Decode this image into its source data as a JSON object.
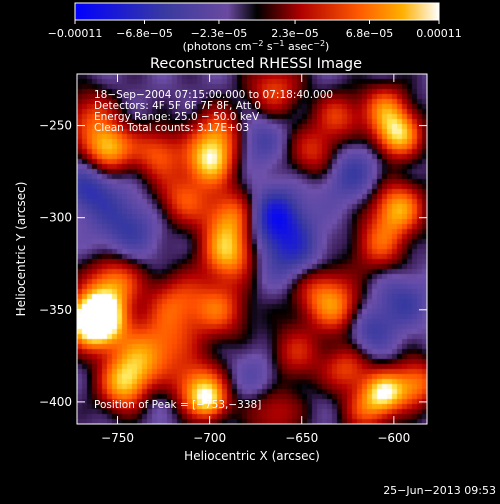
{
  "chart_data": {
    "type": "heatmap",
    "title": "Reconstructed RHESSI Image",
    "xlabel": "Heliocentric X (arcsec)",
    "ylabel": "Heliocentric Y (arcsec)",
    "xlim": [
      -772,
      -582
    ],
    "ylim": [
      -412,
      -222
    ],
    "x_ticks": [
      -750,
      -700,
      -650,
      -600
    ],
    "x_tick_labels": [
      "−750",
      "−700",
      "−650",
      "−600"
    ],
    "y_ticks": [
      -400,
      -350,
      -300,
      -250
    ],
    "y_tick_labels": [
      "−400",
      "−350",
      "−300",
      "−250"
    ],
    "colorbar": {
      "range": [
        -0.00011,
        0.00011
      ],
      "ticks": [
        -0.00011,
        -6.8e-05,
        -2.3e-05,
        2.3e-05,
        6.8e-05,
        0.00011
      ],
      "tick_labels": [
        "−0.00011",
        "−6.8e−05",
        "−2.3e−05",
        "2.3e−05",
        "6.8e−05",
        "0.00011"
      ],
      "units_text": "(photons cm",
      "units_exp1": "−2",
      "units_mid": " s",
      "units_exp2": "−1",
      "units_end": " asec",
      "units_exp3": "−2",
      "units_close": ")"
    },
    "annotations": [
      "18−Sep−2004 07:15:00.000 to 07:18:40.000",
      "Detectors: 4F 5F 6F 7F 8F, Att 0",
      "Energy Range: 25.0 − 50.0 keV",
      "Clean     Total counts: 3.17E+03"
    ],
    "peak_label": "Position of Peak = [−753,−338]",
    "peak_position": [
      -753,
      -338
    ],
    "blobs": [
      {
        "x": -763,
        "y": -355,
        "v": 1.0,
        "r": 9
      },
      {
        "x": -760,
        "y": -356,
        "v": 0.9,
        "r": 11
      },
      {
        "x": -752,
        "y": -335,
        "v": 0.7,
        "r": 10
      },
      {
        "x": -745,
        "y": -392,
        "v": 0.85,
        "r": 10
      },
      {
        "x": -740,
        "y": -380,
        "v": 0.55,
        "r": 11
      },
      {
        "x": -725,
        "y": -368,
        "v": 0.55,
        "r": 12
      },
      {
        "x": -718,
        "y": -345,
        "v": 0.5,
        "r": 11
      },
      {
        "x": -706,
        "y": -392,
        "v": 0.75,
        "r": 10
      },
      {
        "x": -700,
        "y": -400,
        "v": 0.65,
        "r": 7
      },
      {
        "x": -695,
        "y": -350,
        "v": 0.6,
        "r": 11
      },
      {
        "x": -690,
        "y": -320,
        "v": 0.8,
        "r": 10
      },
      {
        "x": -688,
        "y": -300,
        "v": 0.75,
        "r": 11
      },
      {
        "x": -700,
        "y": -270,
        "v": 0.85,
        "r": 9
      },
      {
        "x": -695,
        "y": -255,
        "v": 0.7,
        "r": 10
      },
      {
        "x": -715,
        "y": -290,
        "v": 0.55,
        "r": 10
      },
      {
        "x": -728,
        "y": -265,
        "v": 0.6,
        "r": 10
      },
      {
        "x": -755,
        "y": -262,
        "v": 0.9,
        "r": 9
      },
      {
        "x": -765,
        "y": -245,
        "v": 0.5,
        "r": 10
      },
      {
        "x": -665,
        "y": -230,
        "v": 0.55,
        "r": 10
      },
      {
        "x": -642,
        "y": -265,
        "v": 0.55,
        "r": 10
      },
      {
        "x": -630,
        "y": -245,
        "v": 0.5,
        "r": 9
      },
      {
        "x": -598,
        "y": -255,
        "v": 0.95,
        "r": 9
      },
      {
        "x": -605,
        "y": -240,
        "v": 0.6,
        "r": 9
      },
      {
        "x": -598,
        "y": -295,
        "v": 0.85,
        "r": 10
      },
      {
        "x": -608,
        "y": -315,
        "v": 0.55,
        "r": 10
      },
      {
        "x": -640,
        "y": -340,
        "v": 0.6,
        "r": 11
      },
      {
        "x": -628,
        "y": -352,
        "v": 0.55,
        "r": 10
      },
      {
        "x": -655,
        "y": -375,
        "v": 0.5,
        "r": 11
      },
      {
        "x": -625,
        "y": -382,
        "v": 0.55,
        "r": 9
      },
      {
        "x": -605,
        "y": -395,
        "v": 0.9,
        "r": 8
      },
      {
        "x": -588,
        "y": -390,
        "v": 0.7,
        "r": 9
      },
      {
        "x": -615,
        "y": -405,
        "v": 0.5,
        "r": 9
      },
      {
        "x": -665,
        "y": -405,
        "v": 0.45,
        "r": 10
      },
      {
        "x": -745,
        "y": -305,
        "v": -0.4,
        "r": 12
      },
      {
        "x": -665,
        "y": -300,
        "v": -0.75,
        "r": 11
      },
      {
        "x": -655,
        "y": -320,
        "v": -0.45,
        "r": 12
      },
      {
        "x": -625,
        "y": -275,
        "v": -0.4,
        "r": 12
      },
      {
        "x": -675,
        "y": -258,
        "v": -0.35,
        "r": 10
      },
      {
        "x": -765,
        "y": -285,
        "v": -0.45,
        "r": 10
      },
      {
        "x": -735,
        "y": -395,
        "v": -0.3,
        "r": 10
      },
      {
        "x": -615,
        "y": -360,
        "v": -0.45,
        "r": 10
      },
      {
        "x": -595,
        "y": -345,
        "v": -0.35,
        "r": 10
      },
      {
        "x": -670,
        "y": -385,
        "v": -0.3,
        "r": 11
      }
    ]
  },
  "footer_timestamp": "25−Jun−2013 09:53"
}
